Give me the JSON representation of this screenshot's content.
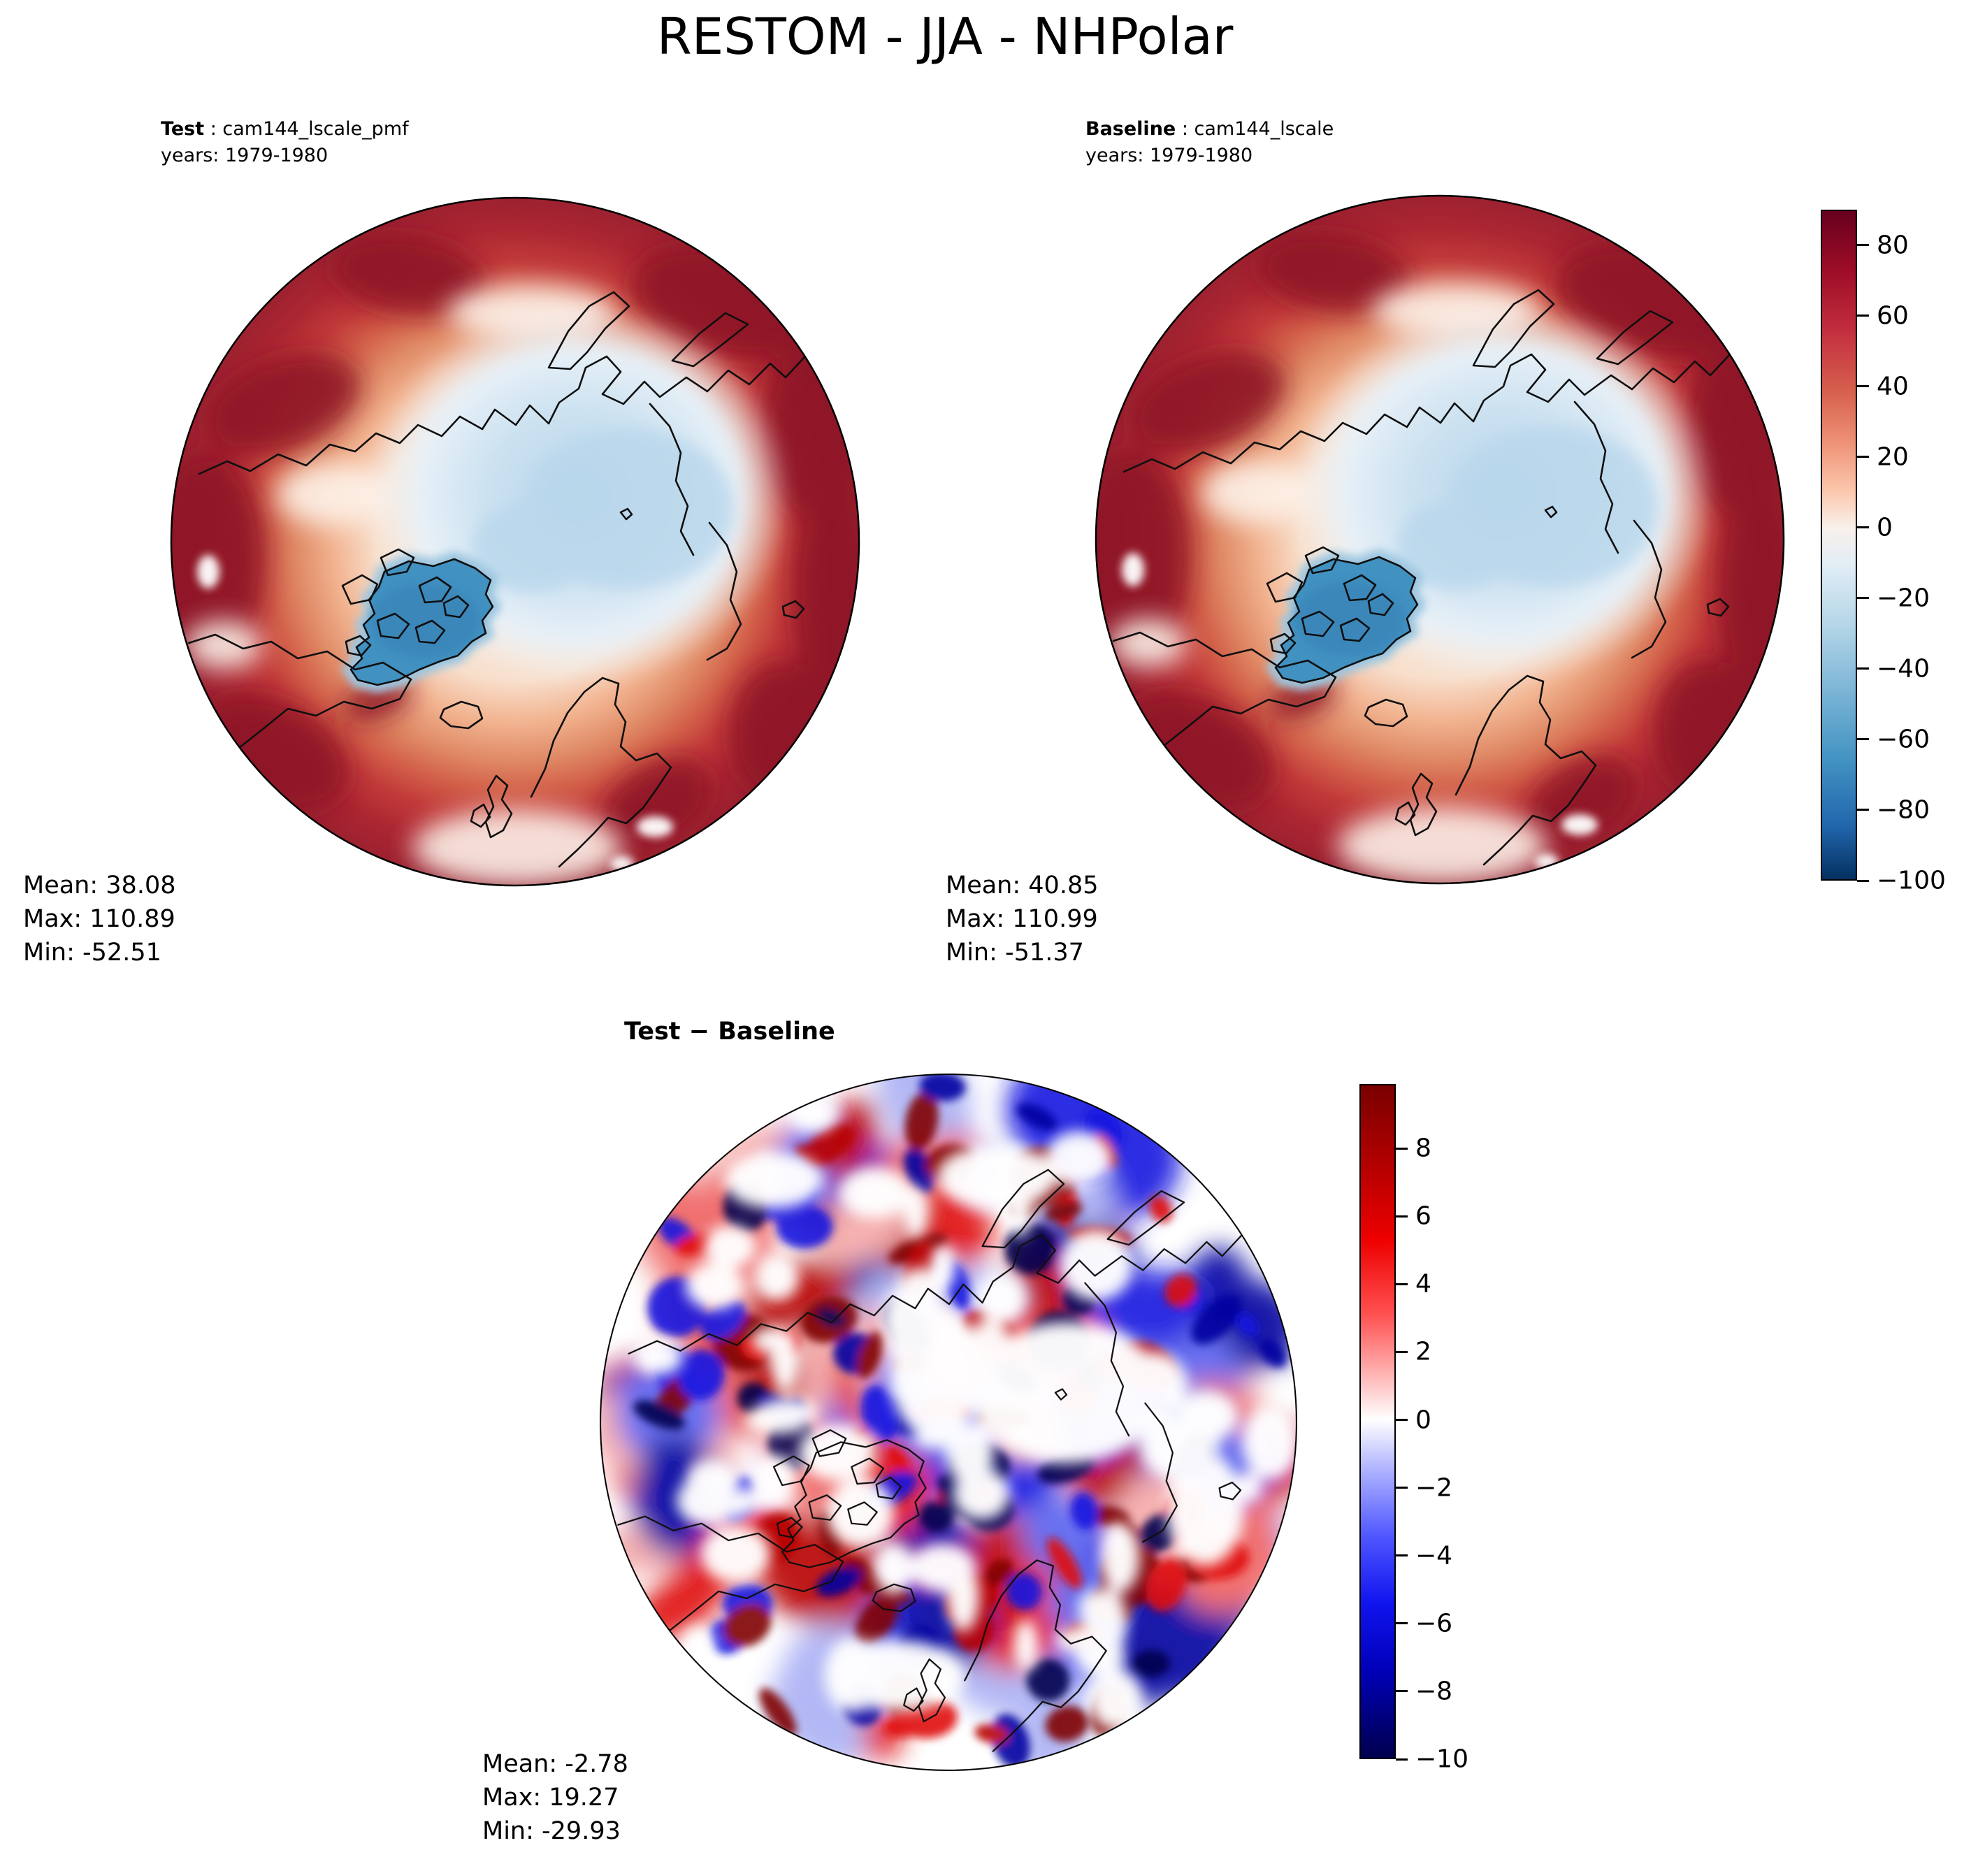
{
  "figure": {
    "title": "RESTOM - JJA - NHPolar",
    "background": "#ffffff"
  },
  "panels": {
    "test": {
      "label_bold": "Test",
      "label_rest": " : cam144_lscale_pmf",
      "years": "years: 1979-1980",
      "stats": {
        "mean": "Mean: 38.08",
        "max": "Max: 110.89",
        "min": "Min: -52.51"
      }
    },
    "baseline": {
      "label_bold": "Baseline",
      "label_rest": " : cam144_lscale",
      "years": "years: 1979-1980",
      "stats": {
        "mean": "Mean: 40.85",
        "max": "Max: 110.99",
        "min": "Min: -51.37"
      }
    },
    "diff": {
      "title": "Test − Baseline",
      "stats": {
        "mean": "Mean: -2.78",
        "max": "Max: 19.27",
        "min": "Min: -29.93"
      }
    }
  },
  "colorbars": {
    "main": {
      "vmin": -100,
      "vmax": 90,
      "ticks": [
        {
          "label": "80",
          "value": 80
        },
        {
          "label": "60",
          "value": 60
        },
        {
          "label": "40",
          "value": 40
        },
        {
          "label": "20",
          "value": 20
        },
        {
          "label": "0",
          "value": 0
        },
        {
          "label": "−20",
          "value": -20
        },
        {
          "label": "−40",
          "value": -40
        },
        {
          "label": "−60",
          "value": -60
        },
        {
          "label": "−80",
          "value": -80
        },
        {
          "label": "−100",
          "value": -100
        }
      ],
      "gradient": [
        [
          0.0,
          "#67001f"
        ],
        [
          0.09,
          "#9e0d27"
        ],
        [
          0.18,
          "#c32f3f"
        ],
        [
          0.27,
          "#d6604d"
        ],
        [
          0.35,
          "#ef9478"
        ],
        [
          0.42,
          "#fbc8ad"
        ],
        [
          0.474,
          "#f9f1ec"
        ],
        [
          0.53,
          "#e1edf5"
        ],
        [
          0.62,
          "#b4d6e8"
        ],
        [
          0.72,
          "#7ab4d6"
        ],
        [
          0.82,
          "#4393c3"
        ],
        [
          0.92,
          "#2166ac"
        ],
        [
          1.0,
          "#053061"
        ]
      ]
    },
    "diff": {
      "vmin": -10,
      "vmax": 9.9,
      "ticks": [
        {
          "label": "8",
          "value": 8
        },
        {
          "label": "6",
          "value": 6
        },
        {
          "label": "4",
          "value": 4
        },
        {
          "label": "2",
          "value": 2
        },
        {
          "label": "0",
          "value": 0
        },
        {
          "label": "−2",
          "value": -2
        },
        {
          "label": "−4",
          "value": -4
        },
        {
          "label": "−6",
          "value": -6
        },
        {
          "label": "−8",
          "value": -8
        },
        {
          "label": "−10",
          "value": -10
        }
      ],
      "gradient": [
        [
          0.0,
          "#7a0000"
        ],
        [
          0.12,
          "#b40000"
        ],
        [
          0.23,
          "#ee0000"
        ],
        [
          0.34,
          "#ff5050"
        ],
        [
          0.43,
          "#ffb4b4"
        ],
        [
          0.497,
          "#ffffff"
        ],
        [
          0.57,
          "#b0b4ff"
        ],
        [
          0.67,
          "#5057ff"
        ],
        [
          0.77,
          "#1014ee"
        ],
        [
          0.87,
          "#0000b8"
        ],
        [
          1.0,
          "#00004e"
        ]
      ]
    }
  },
  "map_colors": {
    "coast": "#0f0f0f",
    "dark_red": "#8e1426",
    "ring_red": "#c23b3a",
    "salmon": "#f2b491",
    "pale_center": "#f9ece1",
    "arctic_blue": "#cde2f1",
    "deep_arctic_blue": "#b9d7ec",
    "greenland_blue": "#4191c1",
    "white": "#ffffff",
    "diff_reds": [
      "#7f0000",
      "#b80000",
      "#e01010",
      "#ef6060",
      "#f5a8a8"
    ],
    "diff_blues": [
      "#00004e",
      "#0000a0",
      "#1616e0",
      "#5860ee",
      "#aab0f4"
    ]
  },
  "chart_data": {
    "type": "heatmap",
    "title": "RESTOM - JJA - NHPolar",
    "variable": "RESTOM",
    "season": "JJA",
    "region": "NHPolar",
    "projection": "north-polar-stereographic",
    "panels": [
      {
        "panel": "Test",
        "dataset": "cam144_lscale_pmf",
        "years": "1979-1980",
        "mean": 38.08,
        "max": 110.89,
        "min": -52.51,
        "colormap": "RdBu_r",
        "colorbar_ticks": [
          80,
          60,
          40,
          20,
          0,
          -20,
          -40,
          -60,
          -80,
          -100
        ],
        "colorbar_range": [
          -100,
          90
        ]
      },
      {
        "panel": "Baseline",
        "dataset": "cam144_lscale",
        "years": "1979-1980",
        "mean": 40.85,
        "max": 110.99,
        "min": -51.37,
        "colormap": "RdBu_r",
        "colorbar_ticks": [
          80,
          60,
          40,
          20,
          0,
          -20,
          -40,
          -60,
          -80,
          -100
        ],
        "colorbar_range": [
          -100,
          90
        ]
      },
      {
        "panel": "Test − Baseline",
        "mean": -2.78,
        "max": 19.27,
        "min": -29.93,
        "colormap": "seismic",
        "colorbar_ticks": [
          8,
          6,
          4,
          2,
          0,
          -2,
          -4,
          -6,
          -8,
          -10
        ],
        "colorbar_range": [
          -10,
          9.9
        ]
      }
    ]
  }
}
